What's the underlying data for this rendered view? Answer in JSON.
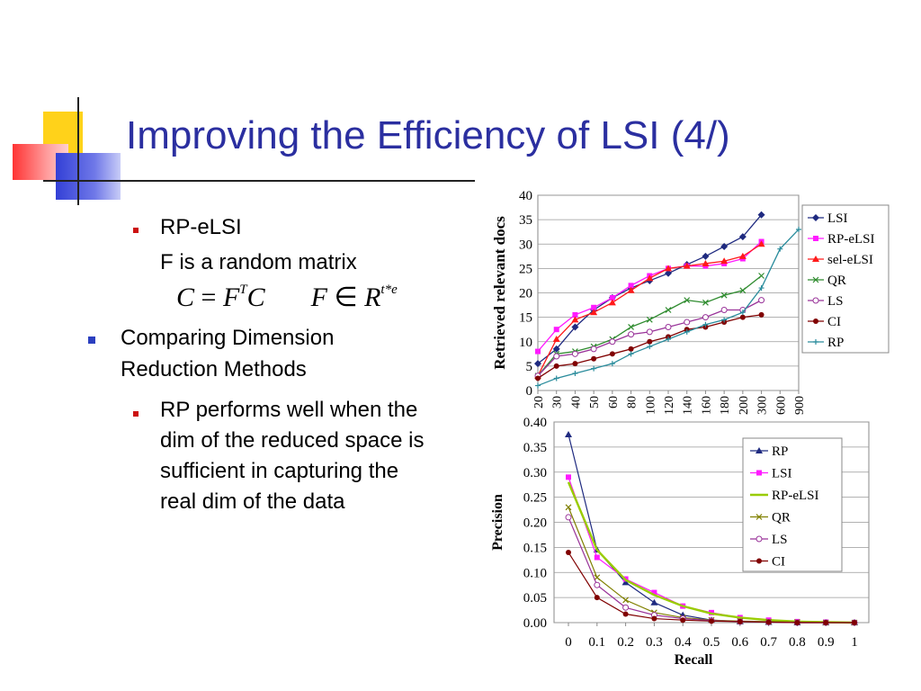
{
  "title": "Improving the Efficiency of LSI (4/)",
  "bullets": {
    "b1": "RP-eLSI",
    "b1_sub": "F is a random matrix",
    "formula": {
      "lhs": "C",
      "eq": "=",
      "f": "F",
      "t": "T",
      "c2": "C",
      "f2": "F",
      "in": "∈",
      "r": "R",
      "exp": "t*e"
    },
    "b2_line1": "Comparing Dimension",
    "b2_line2": "Reduction Methods",
    "b3_line1": "RP performs well when the",
    "b3_line2": "dim of the reduced space is",
    "b3_line3": "sufficient in capturing the",
    "b3_line4": "real dim of the data"
  },
  "chart_data": [
    {
      "type": "line",
      "ylabel": "Retrieved relevant docs",
      "xlabel": "",
      "categories": [
        "20",
        "30",
        "40",
        "50",
        "60",
        "80",
        "100",
        "120",
        "140",
        "160",
        "180",
        "200",
        "300",
        "600",
        "900"
      ],
      "yticks": [
        "0",
        "5",
        "10",
        "15",
        "20",
        "25",
        "30",
        "35",
        "40"
      ],
      "ylim": [
        0,
        40
      ],
      "grid": "horizontal",
      "legend": "right",
      "series": [
        {
          "name": "LSI",
          "color": "#1f2a80",
          "marker": "diamond",
          "values": [
            5.5,
            8.5,
            13,
            16.5,
            19,
            21,
            22.5,
            24,
            25.8,
            27.5,
            29.5,
            31.5,
            36,
            null,
            null
          ]
        },
        {
          "name": "RP-eLSI",
          "color": "#ff1aff",
          "marker": "square",
          "values": [
            8,
            12.5,
            15.5,
            17,
            19,
            21.5,
            23.5,
            25,
            25.5,
            25.5,
            26,
            27,
            30.5,
            null,
            null
          ]
        },
        {
          "name": "sel-eLSI",
          "color": "#ff1a1a",
          "marker": "triangle",
          "values": [
            3,
            10.5,
            14.5,
            16,
            18,
            20.5,
            23,
            25,
            25.5,
            26,
            26.5,
            27.5,
            30,
            null,
            null
          ]
        },
        {
          "name": "QR",
          "color": "#2e8b2e",
          "marker": "x",
          "values": [
            3,
            7.5,
            8,
            9,
            10.5,
            13,
            14.5,
            16.5,
            18.5,
            18,
            19.5,
            20.5,
            23.5,
            null,
            null
          ]
        },
        {
          "name": "LS",
          "color": "#993399",
          "marker": "circle-open",
          "values": [
            3,
            7,
            7.5,
            8.5,
            10,
            11.5,
            12,
            13,
            14,
            15,
            16.5,
            16.5,
            18.5,
            null,
            null
          ]
        },
        {
          "name": "CI",
          "color": "#800000",
          "marker": "circle",
          "values": [
            2.5,
            5,
            5.5,
            6.5,
            7.5,
            8.5,
            10,
            11,
            12.5,
            13,
            14,
            15,
            15.5,
            null,
            null
          ]
        },
        {
          "name": "RP",
          "color": "#2a8c9c",
          "marker": "plus",
          "values": [
            1,
            2.5,
            3.5,
            4.5,
            5.5,
            7.5,
            9,
            10.5,
            12,
            13.5,
            14.5,
            16,
            21,
            29,
            33
          ]
        }
      ]
    },
    {
      "type": "line",
      "xlabel": "Recall",
      "ylabel": "Precision",
      "x": [
        0,
        0.1,
        0.2,
        0.3,
        0.4,
        0.5,
        0.6,
        0.7,
        0.8,
        0.9,
        1
      ],
      "xticks": [
        "0",
        "0.1",
        "0.2",
        "0.3",
        "0.4",
        "0.5",
        "0.6",
        "0.7",
        "0.8",
        "0.9",
        "1"
      ],
      "yticks": [
        "0.00",
        "0.05",
        "0.10",
        "0.15",
        "0.20",
        "0.25",
        "0.30",
        "0.35",
        "0.40"
      ],
      "xlim": [
        0,
        1
      ],
      "ylim": [
        0,
        0.4
      ],
      "grid": "horizontal",
      "legend": "top-right",
      "series": [
        {
          "name": "RP",
          "color": "#1f2a80",
          "marker": "triangle",
          "values": [
            0.375,
            0.145,
            0.08,
            0.04,
            0.015,
            0.005,
            0.002,
            0.001,
            0,
            0,
            0
          ]
        },
        {
          "name": "LSI",
          "color": "#ff1aff",
          "marker": "square",
          "values": [
            0.29,
            0.13,
            0.087,
            0.06,
            0.033,
            0.02,
            0.01,
            0.005,
            0.002,
            0.001,
            0
          ]
        },
        {
          "name": "RP-eLSI",
          "color": "#99cc00",
          "marker": "none",
          "values": [
            0.28,
            0.145,
            0.085,
            0.055,
            0.033,
            0.018,
            0.01,
            0.005,
            0.002,
            0.001,
            0
          ]
        },
        {
          "name": "QR",
          "color": "#808000",
          "marker": "x",
          "values": [
            0.23,
            0.09,
            0.045,
            0.02,
            0.01,
            0.005,
            0.003,
            0.002,
            0.001,
            0,
            0
          ]
        },
        {
          "name": "LS",
          "color": "#993399",
          "marker": "circle-open",
          "values": [
            0.21,
            0.075,
            0.03,
            0.015,
            0.008,
            0.004,
            0.002,
            0.001,
            0,
            0,
            0
          ]
        },
        {
          "name": "CI",
          "color": "#800000",
          "marker": "circle",
          "values": [
            0.14,
            0.05,
            0.017,
            0.008,
            0.005,
            0.003,
            0.002,
            0.001,
            0,
            0,
            0
          ]
        }
      ]
    }
  ]
}
